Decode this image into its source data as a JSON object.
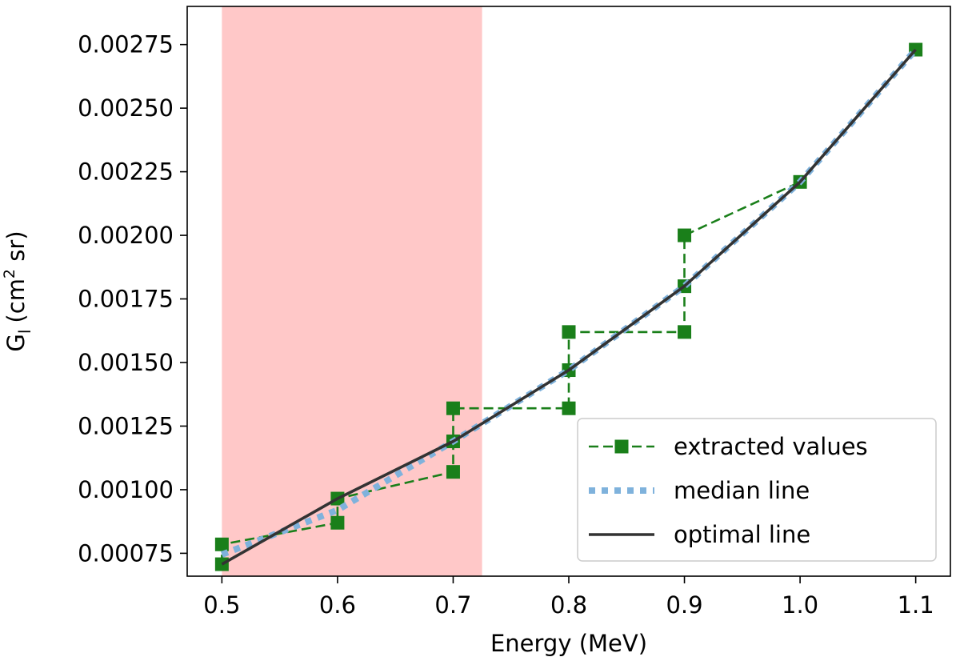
{
  "chart_data": {
    "type": "line",
    "xlabel": "Energy (MeV)",
    "ylabel_main": "G",
    "ylabel_sub": "l",
    "ylabel_unit_prefix": "(cm",
    "ylabel_unit_sup": "2",
    "ylabel_unit_suffix": " sr)",
    "xlim": [
      0.47,
      1.13
    ],
    "ylim": [
      0.00066,
      0.0029
    ],
    "xticks": [
      0.5,
      0.6,
      0.7,
      0.8,
      0.9,
      1.0,
      1.1
    ],
    "xtick_labels": [
      "0.5",
      "0.6",
      "0.7",
      "0.8",
      "0.9",
      "1.0",
      "1.1"
    ],
    "yticks": [
      0.00075,
      0.001,
      0.00125,
      0.0015,
      0.00175,
      0.002,
      0.00225,
      0.0025,
      0.00275
    ],
    "ytick_labels": [
      "0.00075",
      "0.00100",
      "0.00125",
      "0.00150",
      "0.00175",
      "0.00200",
      "0.00225",
      "0.00250",
      "0.00275"
    ],
    "shaded_region": {
      "x0": 0.5,
      "x1": 0.725,
      "color": "#ffc8c8"
    },
    "series": [
      {
        "name": "extracted values",
        "style": "dashed-square",
        "color": "#1a7f1a",
        "points": [
          [
            0.5,
            0.000707
          ],
          [
            0.5,
            0.000785
          ],
          [
            0.6,
            0.00087
          ],
          [
            0.6,
            0.000965
          ],
          [
            0.7,
            0.00107
          ],
          [
            0.7,
            0.00119
          ],
          [
            0.7,
            0.00132
          ],
          [
            0.8,
            0.00132
          ],
          [
            0.8,
            0.00147
          ],
          [
            0.8,
            0.00162
          ],
          [
            0.9,
            0.00162
          ],
          [
            0.9,
            0.0018
          ],
          [
            0.9,
            0.002
          ],
          [
            1.0,
            0.00221
          ],
          [
            1.1,
            0.00273
          ]
        ]
      },
      {
        "name": "median line",
        "style": "dotted",
        "color": "#7fb2dc",
        "points": [
          [
            0.5,
            0.000745
          ],
          [
            0.6,
            0.00092
          ],
          [
            0.7,
            0.00119
          ],
          [
            0.8,
            0.00147
          ],
          [
            0.9,
            0.0018
          ],
          [
            1.0,
            0.00221
          ],
          [
            1.1,
            0.00273
          ]
        ]
      },
      {
        "name": "optimal line",
        "style": "solid",
        "color": "#333333",
        "points": [
          [
            0.5,
            0.000707
          ],
          [
            0.6,
            0.000965
          ],
          [
            0.7,
            0.00119
          ],
          [
            0.8,
            0.00147
          ],
          [
            0.9,
            0.0018
          ],
          [
            1.0,
            0.00221
          ],
          [
            1.1,
            0.00273
          ]
        ]
      }
    ],
    "legend_position": "lower-right"
  }
}
